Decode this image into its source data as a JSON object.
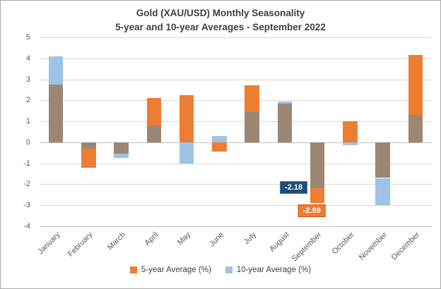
{
  "chart_data": {
    "type": "bar",
    "title": "Gold (XAU/USD) Monthly Seasonality",
    "subtitle": "5-year and 10-year Averages - September 2022",
    "categories": [
      "January",
      "February",
      "March",
      "April",
      "May",
      "June",
      "July",
      "August",
      "September",
      "October",
      "November",
      "December"
    ],
    "series": [
      {
        "name": "5-year Average (%)",
        "color": "#ED7D31",
        "values": [
          2.75,
          -1.2,
          -0.55,
          2.1,
          2.25,
          -0.45,
          2.7,
          1.85,
          -2.89,
          1.0,
          -1.7,
          4.15
        ]
      },
      {
        "name": "10-year Average (%)",
        "color": "#9DC3E6",
        "values": [
          4.1,
          -0.3,
          -0.75,
          0.8,
          -1.0,
          0.3,
          1.45,
          1.95,
          -2.18,
          -0.15,
          -3.0,
          1.3
        ]
      }
    ],
    "overlap_color": "#9C8674",
    "ylim": [
      -4,
      5
    ],
    "yticks": [
      5,
      4,
      3,
      2,
      1,
      0,
      -1,
      -2,
      -3,
      -4
    ],
    "grid": true,
    "legend_position": "bottom",
    "annotations": [
      {
        "text": "-2.18",
        "month_index": 8,
        "value": -2.18,
        "bg": "#1F4E79",
        "fg": "#FFFFFF",
        "position": "left"
      },
      {
        "text": "-2.89",
        "month_index": 8,
        "value": -2.89,
        "bg": "#ED7D31",
        "fg": "#FFFFFF",
        "position": "below"
      }
    ]
  }
}
